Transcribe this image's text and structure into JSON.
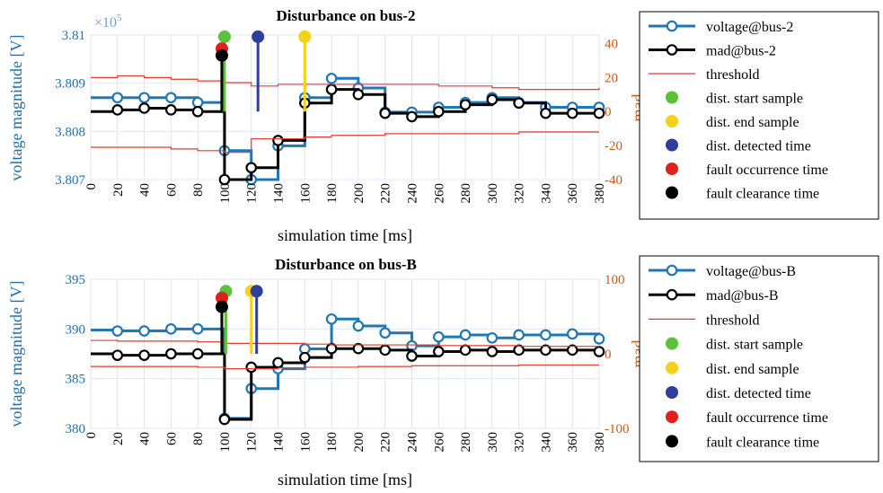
{
  "chart_data": [
    {
      "type": "line",
      "title": "Disturbance on bus-2",
      "xlabel": "simulation time [ms]",
      "ylabel": "voltage magnitude [V]",
      "y2label": "mad",
      "y_exponent": "×10",
      "y_exponent_power": "5",
      "xlim": [
        0,
        380
      ],
      "ylim": [
        3.807,
        3.81
      ],
      "y2lim": [
        -40,
        45
      ],
      "xticks": [
        "0",
        "20",
        "40",
        "60",
        "80",
        "100",
        "120",
        "140",
        "160",
        "180",
        "200",
        "220",
        "240",
        "260",
        "280",
        "300",
        "320",
        "340",
        "360",
        "380"
      ],
      "yticks": [
        "3.807",
        "3.808",
        "3.809",
        "3.81"
      ],
      "y2ticks": [
        "-40",
        "-20",
        "0",
        "20",
        "40"
      ],
      "grid": true,
      "legend_position": "right",
      "series": [
        {
          "name": "voltage@bus-2",
          "axis": "left",
          "color": "#1f77b4",
          "style": "stairs-marker",
          "x": [
            0,
            20,
            40,
            60,
            80,
            100,
            120,
            140,
            160,
            180,
            200,
            220,
            240,
            260,
            280,
            300,
            320,
            340,
            360,
            380
          ],
          "y": [
            3.8087,
            3.8087,
            3.8087,
            3.8087,
            3.8086,
            3.8076,
            3.807,
            3.8077,
            3.8087,
            3.8091,
            3.8089,
            3.8084,
            3.8084,
            3.8085,
            3.8086,
            3.8087,
            3.8086,
            3.8085,
            3.8085,
            3.8085
          ]
        },
        {
          "name": "mad@bus-2",
          "axis": "right",
          "color": "#000000",
          "style": "stairs-marker",
          "x": [
            0,
            20,
            40,
            60,
            80,
            100,
            120,
            140,
            160,
            180,
            200,
            220,
            240,
            260,
            280,
            300,
            320,
            340,
            360,
            380
          ],
          "y": [
            0,
            1,
            2,
            1,
            0,
            -40,
            -33,
            -17,
            5,
            13,
            10,
            -1,
            -3,
            0,
            4,
            7,
            5,
            -1,
            -1,
            -1
          ]
        },
        {
          "name": "threshold",
          "axis": "right",
          "color": "#e03c31",
          "style": "line",
          "x": [
            0,
            20,
            40,
            60,
            80,
            100,
            120,
            140,
            160,
            180,
            200,
            220,
            240,
            260,
            280,
            300,
            320,
            340,
            360,
            380
          ],
          "y": [
            20,
            21,
            20,
            19,
            18,
            17,
            15,
            16,
            16,
            16,
            16,
            16,
            16,
            15,
            15,
            14,
            13,
            13,
            13,
            14
          ]
        },
        {
          "name": "threshold-lower",
          "axis": "right",
          "color": "#e03c31",
          "style": "line",
          "x": [
            0,
            20,
            40,
            60,
            80,
            100,
            120,
            140,
            160,
            180,
            200,
            220,
            240,
            260,
            280,
            300,
            320,
            340,
            360,
            380
          ],
          "y": [
            -21,
            -21,
            -21,
            -22,
            -23,
            -24,
            -16,
            -16,
            -15,
            -14,
            -14,
            -13,
            -13,
            -13,
            -13,
            -13,
            -12,
            -12,
            -12,
            -12
          ]
        }
      ],
      "events": [
        {
          "name": "dist. start sample",
          "color": "#5cc23a",
          "x": 100,
          "y2": 44
        },
        {
          "name": "dist. end sample",
          "color": "#f5d11a",
          "x": 160,
          "y2": 44
        },
        {
          "name": "dist. detected time",
          "color": "#2e3e9a",
          "x": 125,
          "y2": 44
        },
        {
          "name": "fault occurrence time",
          "color": "#e0201b",
          "x": 98,
          "y2": 37
        },
        {
          "name": "fault clearance time",
          "color": "#000000",
          "x": 98,
          "y2": 33
        }
      ],
      "legend": [
        "voltage@bus-2",
        "mad@bus-2",
        "threshold",
        "dist. start sample",
        "dist. end sample",
        "dist. detected time",
        "fault occurrence time",
        "fault clearance time"
      ]
    },
    {
      "type": "line",
      "title": "Disturbance on bus-B",
      "xlabel": "simulation time [ms]",
      "ylabel": "voltage magnitude [V]",
      "y2label": "mad",
      "xlim": [
        0,
        380
      ],
      "ylim": [
        380,
        395
      ],
      "y2lim": [
        -100,
        100
      ],
      "xticks": [
        "0",
        "20",
        "40",
        "60",
        "80",
        "100",
        "120",
        "140",
        "160",
        "180",
        "200",
        "220",
        "240",
        "260",
        "280",
        "300",
        "320",
        "340",
        "360",
        "380"
      ],
      "yticks": [
        "380",
        "385",
        "390",
        "395"
      ],
      "y2ticks": [
        "-100",
        "0",
        "100"
      ],
      "grid": true,
      "legend_position": "right",
      "series": [
        {
          "name": "voltage@bus-B",
          "axis": "left",
          "color": "#1f77b4",
          "style": "stairs-marker",
          "x": [
            0,
            20,
            40,
            60,
            80,
            100,
            120,
            140,
            160,
            180,
            200,
            220,
            240,
            260,
            280,
            300,
            320,
            340,
            360,
            380
          ],
          "y": [
            389.9,
            389.8,
            389.8,
            390,
            390,
            381,
            384,
            386,
            388,
            391,
            390.3,
            389.6,
            388.3,
            389.2,
            389.4,
            389.1,
            389.4,
            389.4,
            389.5,
            389
          ],
          "first_x": 20
        },
        {
          "name": "mad@bus-B",
          "axis": "right",
          "color": "#000000",
          "style": "stairs-marker",
          "x": [
            0,
            20,
            40,
            60,
            80,
            100,
            120,
            140,
            160,
            180,
            200,
            220,
            240,
            260,
            280,
            300,
            320,
            340,
            360,
            380
          ],
          "y": [
            0,
            -2,
            -2,
            0,
            0,
            -88,
            -18,
            -12,
            -5,
            7,
            7,
            5,
            -3,
            3,
            5,
            3,
            5,
            5,
            5,
            3
          ],
          "first_x": 20
        },
        {
          "name": "threshold",
          "axis": "right",
          "color": "#e03c31",
          "style": "line",
          "x": [
            0,
            20,
            40,
            60,
            80,
            100,
            120,
            140,
            160,
            180,
            200,
            220,
            240,
            260,
            280,
            300,
            320,
            340,
            360,
            380
          ],
          "y": [
            18,
            17,
            17,
            17,
            16,
            14,
            14,
            14,
            13,
            12,
            12,
            12,
            12,
            11,
            11,
            11,
            10,
            10,
            10,
            10
          ]
        },
        {
          "name": "threshold-lower",
          "axis": "right",
          "color": "#e03c31",
          "style": "line",
          "x": [
            0,
            20,
            40,
            60,
            80,
            100,
            120,
            140,
            160,
            180,
            200,
            220,
            240,
            260,
            280,
            300,
            320,
            340,
            360,
            380
          ],
          "y": [
            -17,
            -17,
            -17,
            -17,
            -18,
            -20,
            -20,
            -19,
            -18,
            -18,
            -17,
            -17,
            -16,
            -16,
            -16,
            -16,
            -15,
            -15,
            -15,
            -15
          ]
        }
      ],
      "events": [
        {
          "name": "dist. start sample",
          "color": "#5cc23a",
          "x": 101,
          "y2": 84
        },
        {
          "name": "dist. end sample",
          "color": "#f5d11a",
          "x": 120,
          "y2": 84
        },
        {
          "name": "dist. detected time",
          "color": "#2e3e9a",
          "x": 124,
          "y2": 84
        },
        {
          "name": "fault occurrence time",
          "color": "#e0201b",
          "x": 98,
          "y2": 75
        },
        {
          "name": "fault clearance time",
          "color": "#000000",
          "x": 98,
          "y2": 63
        }
      ],
      "legend": [
        "voltage@bus-B",
        "mad@bus-B",
        "threshold",
        "dist. start sample",
        "dist. end sample",
        "dist. detected time",
        "fault occurrence time",
        "fault clearance time"
      ]
    }
  ]
}
